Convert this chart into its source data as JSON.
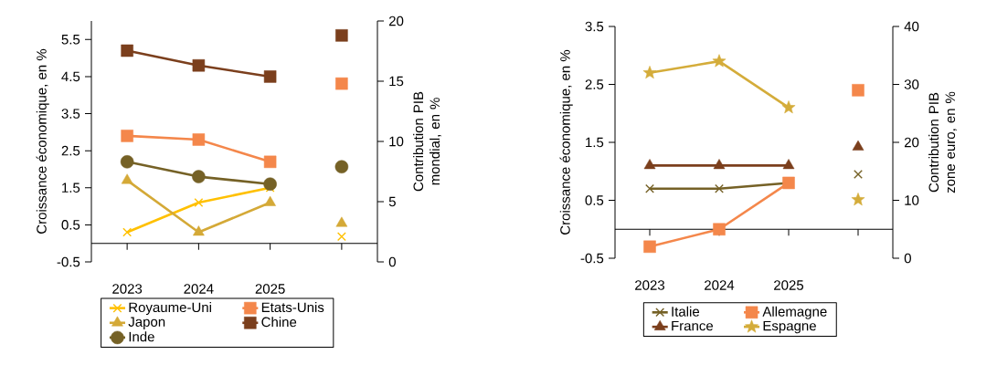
{
  "chart_data": [
    {
      "type": "line",
      "categories": [
        "2023",
        "2024",
        "2025",
        null
      ],
      "ylabel": "Croissance économique, en %",
      "y2label": "Contribution PIB mondial, en %",
      "ylim": [
        -0.5,
        6
      ],
      "yticks": [
        -0.5,
        0.5,
        1.5,
        2.5,
        3.5,
        4.5,
        5.5
      ],
      "y2lim": [
        0,
        20
      ],
      "y2ticks": [
        0,
        5,
        10,
        15,
        20
      ],
      "legend": "bottom",
      "series": [
        {
          "name": "Royaume-Uni",
          "color": "#ffc000",
          "marker": "cross",
          "values": [
            0.3,
            1.1,
            1.5,
            null
          ]
        },
        {
          "name": "Etats-Unis",
          "color": "#f4874b",
          "marker": "square",
          "values": [
            2.9,
            2.8,
            2.2,
            null
          ]
        },
        {
          "name": "Japon",
          "color": "#d4a937",
          "marker": "triangle",
          "values": [
            1.7,
            0.3,
            1.1,
            null
          ]
        },
        {
          "name": "Chine",
          "color": "#7b3f1d",
          "marker": "square",
          "values": [
            5.2,
            4.8,
            4.5,
            null
          ]
        },
        {
          "name": "Inde",
          "color": "#756126",
          "marker": "circle",
          "values": [
            2.2,
            1.8,
            1.6,
            null
          ]
        },
        {
          "type": "scatter",
          "axis": "y2",
          "color": "#ffc000",
          "marker": "cross",
          "values": [
            null,
            null,
            null,
            2.1
          ]
        },
        {
          "type": "scatter",
          "axis": "y2",
          "color": "#f4874b",
          "marker": "square",
          "values": [
            null,
            null,
            null,
            14.8
          ]
        },
        {
          "type": "scatter",
          "axis": "y2",
          "color": "#d4a937",
          "marker": "triangle",
          "values": [
            null,
            null,
            null,
            3.2
          ]
        },
        {
          "type": "scatter",
          "axis": "y2",
          "color": "#7b3f1d",
          "marker": "square",
          "values": [
            null,
            null,
            null,
            18.8
          ]
        },
        {
          "type": "scatter",
          "axis": "y2",
          "color": "#756126",
          "marker": "circle",
          "values": [
            null,
            null,
            null,
            7.9
          ]
        }
      ]
    },
    {
      "type": "line",
      "categories": [
        "2023",
        "2024",
        "2025",
        null
      ],
      "ylabel": "Croissance économique, en %",
      "y2label": "Contribution PIB zone euro, en %",
      "ylim": [
        -0.5,
        3.5
      ],
      "yticks": [
        -0.5,
        0.5,
        1.5,
        2.5,
        3.5
      ],
      "y2lim": [
        0,
        40
      ],
      "y2ticks": [
        0,
        10,
        20,
        30,
        40
      ],
      "legend": "bottom",
      "series": [
        {
          "name": "Italie",
          "color": "#756126",
          "marker": "cross",
          "values": [
            0.7,
            0.7,
            0.8,
            null
          ]
        },
        {
          "name": "Allemagne",
          "color": "#f4874b",
          "marker": "square",
          "values": [
            -0.3,
            0.0,
            0.8,
            null
          ]
        },
        {
          "name": "France",
          "color": "#7b3f1d",
          "marker": "triangle",
          "values": [
            1.1,
            1.1,
            1.1,
            null
          ]
        },
        {
          "name": "Espagne",
          "color": "#d4ac3a",
          "marker": "star",
          "values": [
            2.7,
            2.9,
            2.1,
            null
          ]
        },
        {
          "type": "scatter",
          "axis": "y2",
          "color": "#756126",
          "marker": "cross",
          "values": [
            null,
            null,
            null,
            14.5
          ]
        },
        {
          "type": "scatter",
          "axis": "y2",
          "color": "#f4874b",
          "marker": "square",
          "values": [
            null,
            null,
            null,
            29
          ]
        },
        {
          "type": "scatter",
          "axis": "y2",
          "color": "#7b3f1d",
          "marker": "triangle",
          "values": [
            null,
            null,
            null,
            19.2
          ]
        },
        {
          "type": "scatter",
          "axis": "y2",
          "color": "#d4ac3a",
          "marker": "star",
          "values": [
            null,
            null,
            null,
            10.1
          ]
        }
      ]
    }
  ]
}
